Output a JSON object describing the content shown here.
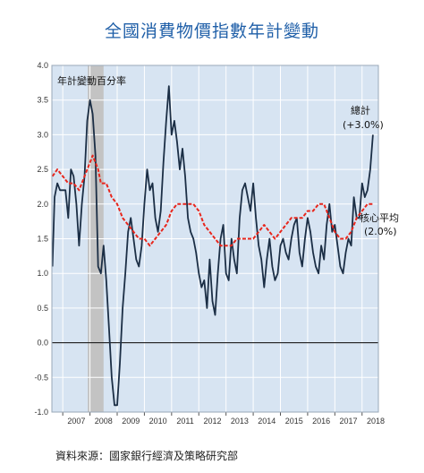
{
  "title": "全國消費物價指數年計變動",
  "source": "資料來源：國家銀行經濟及策略研究部",
  "colors": {
    "plot_bg": "#d7e4f2",
    "recession": "#c3c3c3",
    "headline": "#1b2e45",
    "core": "#e8261c",
    "title": "#1f5fa8"
  },
  "chart_data": {
    "type": "line",
    "ylabel": "年計變動百分率",
    "ylim": [
      -1.0,
      4.0
    ],
    "yticks": [
      "4.0",
      "3.5",
      "3.0",
      "2.5",
      "2.0",
      "1.5",
      "1.0",
      "0.5",
      "0.0",
      "-0.5",
      "-1.0"
    ],
    "xlim": [
      2006.6,
      2018.6
    ],
    "xticks": [
      "2007",
      "2008",
      "2009",
      "2010",
      "2011",
      "2012",
      "2013",
      "2014",
      "2015",
      "2016",
      "2017",
      "2018"
    ],
    "shaded_region": [
      2007.92,
      2008.5
    ],
    "zero_line": 0,
    "grid": true,
    "series": [
      {
        "name": "總計",
        "annotation": "(+3.0%)",
        "line": "solid",
        "x": [
          2006.62,
          2006.7,
          2006.8,
          2006.9,
          2007.0,
          2007.1,
          2007.2,
          2007.3,
          2007.4,
          2007.5,
          2007.6,
          2007.7,
          2007.8,
          2007.9,
          2008.0,
          2008.1,
          2008.2,
          2008.3,
          2008.4,
          2008.5,
          2008.6,
          2008.7,
          2008.8,
          2008.9,
          2009.0,
          2009.1,
          2009.2,
          2009.3,
          2009.4,
          2009.5,
          2009.6,
          2009.7,
          2009.8,
          2009.9,
          2010.0,
          2010.1,
          2010.2,
          2010.3,
          2010.4,
          2010.5,
          2010.6,
          2010.7,
          2010.8,
          2010.9,
          2011.0,
          2011.1,
          2011.2,
          2011.3,
          2011.4,
          2011.5,
          2011.6,
          2011.7,
          2011.8,
          2011.9,
          2012.0,
          2012.1,
          2012.2,
          2012.3,
          2012.4,
          2012.5,
          2012.6,
          2012.7,
          2012.8,
          2012.9,
          2013.0,
          2013.1,
          2013.2,
          2013.3,
          2013.4,
          2013.5,
          2013.6,
          2013.7,
          2013.8,
          2013.9,
          2014.0,
          2014.1,
          2014.2,
          2014.3,
          2014.4,
          2014.5,
          2014.6,
          2014.7,
          2014.8,
          2014.9,
          2015.0,
          2015.1,
          2015.2,
          2015.3,
          2015.4,
          2015.5,
          2015.6,
          2015.7,
          2015.8,
          2015.9,
          2016.0,
          2016.1,
          2016.2,
          2016.3,
          2016.4,
          2016.5,
          2016.6,
          2016.7,
          2016.8,
          2016.9,
          2017.0,
          2017.1,
          2017.2,
          2017.3,
          2017.4,
          2017.5,
          2017.6,
          2017.7,
          2017.8,
          2017.9,
          2018.0,
          2018.1,
          2018.2,
          2018.3,
          2018.4
        ],
        "y": [
          1.1,
          2.1,
          2.3,
          2.2,
          2.2,
          2.2,
          1.8,
          2.5,
          2.4,
          2.0,
          1.4,
          2.0,
          2.4,
          3.2,
          3.5,
          3.3,
          2.7,
          1.1,
          1.0,
          1.4,
          0.9,
          0.2,
          -0.5,
          -0.9,
          -0.9,
          -0.3,
          0.5,
          1.0,
          1.6,
          1.8,
          1.5,
          1.2,
          1.1,
          1.4,
          2.0,
          2.5,
          2.2,
          2.3,
          1.8,
          1.6,
          1.9,
          2.6,
          3.2,
          3.7,
          3.0,
          3.2,
          2.9,
          2.5,
          2.8,
          2.4,
          1.8,
          1.6,
          1.5,
          1.3,
          1.0,
          0.8,
          0.9,
          0.5,
          1.2,
          0.6,
          0.4,
          1.0,
          1.5,
          1.7,
          1.0,
          0.9,
          1.5,
          1.2,
          1.0,
          1.8,
          2.2,
          2.3,
          2.1,
          1.9,
          2.3,
          1.8,
          1.4,
          1.2,
          0.8,
          1.2,
          1.5,
          1.1,
          0.9,
          1.0,
          1.4,
          1.5,
          1.3,
          1.2,
          1.5,
          1.7,
          1.8,
          1.3,
          1.1,
          1.5,
          1.8,
          1.6,
          1.3,
          1.1,
          1.0,
          1.4,
          1.2,
          1.7,
          2.0,
          1.6,
          1.7,
          1.4,
          1.1,
          1.0,
          1.3,
          1.5,
          1.4,
          2.1,
          1.8,
          1.8,
          2.3,
          2.1,
          2.2,
          2.5,
          3.0
        ]
      },
      {
        "name": "核心平均",
        "annotation": "(2.0%)",
        "line": "dashed",
        "x": [
          2006.62,
          2006.8,
          2007.0,
          2007.2,
          2007.4,
          2007.6,
          2007.8,
          2008.0,
          2008.1,
          2008.2,
          2008.3,
          2008.4,
          2008.6,
          2008.8,
          2009.0,
          2009.2,
          2009.4,
          2009.6,
          2009.8,
          2010.0,
          2010.2,
          2010.4,
          2010.6,
          2010.8,
          2011.0,
          2011.2,
          2011.4,
          2011.6,
          2011.8,
          2012.0,
          2012.2,
          2012.4,
          2012.6,
          2012.8,
          2013.0,
          2013.2,
          2013.4,
          2013.6,
          2013.8,
          2014.0,
          2014.2,
          2014.4,
          2014.6,
          2014.8,
          2015.0,
          2015.2,
          2015.4,
          2015.6,
          2015.8,
          2016.0,
          2016.2,
          2016.4,
          2016.6,
          2016.8,
          2017.0,
          2017.2,
          2017.4,
          2017.6,
          2017.8,
          2018.0,
          2018.2,
          2018.4
        ],
        "y": [
          2.4,
          2.5,
          2.4,
          2.3,
          2.3,
          2.2,
          2.4,
          2.6,
          2.7,
          2.6,
          2.5,
          2.3,
          2.3,
          2.1,
          2.0,
          1.8,
          1.7,
          1.6,
          1.5,
          1.5,
          1.4,
          1.5,
          1.6,
          1.7,
          1.9,
          2.0,
          2.0,
          2.0,
          2.0,
          1.9,
          1.7,
          1.6,
          1.5,
          1.4,
          1.4,
          1.4,
          1.5,
          1.5,
          1.5,
          1.5,
          1.6,
          1.7,
          1.6,
          1.5,
          1.6,
          1.7,
          1.8,
          1.8,
          1.8,
          1.9,
          1.9,
          2.0,
          2.0,
          1.8,
          1.6,
          1.5,
          1.5,
          1.6,
          1.8,
          1.9,
          2.0,
          2.0
        ]
      }
    ]
  }
}
